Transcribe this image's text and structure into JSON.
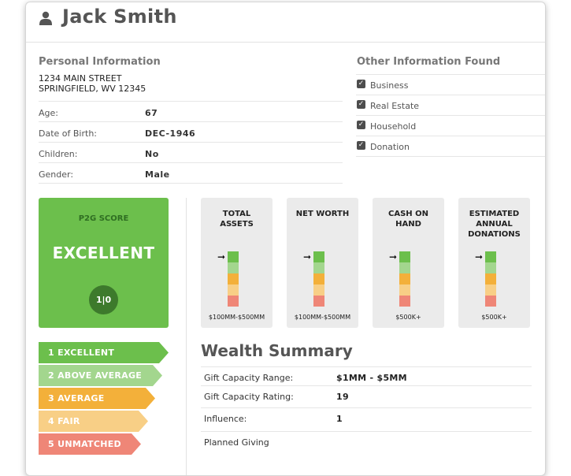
{
  "header": {
    "name": "Jack Smith",
    "icon": "user-icon"
  },
  "personal": {
    "title": "Personal Information",
    "address_line1": "1234 MAIN STREET",
    "address_line2": "SPRINGFIELD, WV 12345",
    "rows": [
      {
        "label": "Age:",
        "value": "67"
      },
      {
        "label": "Date of Birth:",
        "value": "DEC-1946"
      },
      {
        "label": "Children:",
        "value": "No"
      },
      {
        "label": "Gender:",
        "value": "Male"
      }
    ]
  },
  "other": {
    "title": "Other Information Found",
    "items": [
      {
        "label": "Business",
        "checked": true
      },
      {
        "label": "Real Estate",
        "checked": true
      },
      {
        "label": "Household",
        "checked": true
      },
      {
        "label": "Donation",
        "checked": true
      }
    ]
  },
  "score": {
    "label": "P2G SCORE",
    "value": "EXCELLENT",
    "badge": "1|0",
    "color": "#6cbf4c"
  },
  "scale": [
    {
      "label": "1  EXCELLENT",
      "color": "#6cbf4c"
    },
    {
      "label": "2  ABOVE AVERAGE",
      "color": "#a3d68e"
    },
    {
      "label": "3  AVERAGE",
      "color": "#f3b03a"
    },
    {
      "label": "4  FAIR",
      "color": "#f8cf86"
    },
    {
      "label": "5  UNMATCHED",
      "color": "#ef8677"
    }
  ],
  "metrics": [
    {
      "title_lines": [
        "TOTAL",
        "ASSETS"
      ],
      "value": "$100MM-$500MM",
      "level": 1
    },
    {
      "title_lines": [
        "NET WORTH"
      ],
      "value": "$100MM-$500MM",
      "level": 1
    },
    {
      "title_lines": [
        "CASH ON",
        "HAND"
      ],
      "value": "$500K+",
      "level": 1
    },
    {
      "title_lines": [
        "ESTIMATED",
        "ANNUAL",
        "DONATIONS"
      ],
      "value": "$500K+",
      "level": 1
    }
  ],
  "bar_colors": [
    "#6cbf4c",
    "#a3d68e",
    "#f3b03a",
    "#f8cf86",
    "#ef8677"
  ],
  "wealth": {
    "title": "Wealth Summary",
    "rows": [
      {
        "label": "Gift Capacity Range:",
        "value": "$1MM - $5MM"
      },
      {
        "label": "Gift Capacity Rating:",
        "value": "19"
      },
      {
        "label": "Influence:",
        "value": "1"
      },
      {
        "label": "Planned Giving",
        "value": ""
      }
    ]
  }
}
